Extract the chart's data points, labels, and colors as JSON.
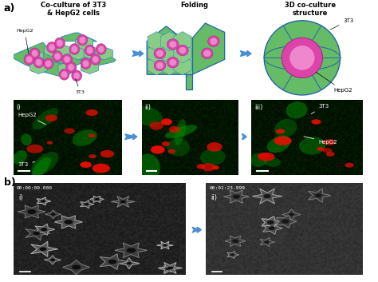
{
  "fig_width": 4.74,
  "fig_height": 3.53,
  "dpi": 100,
  "bg_color": "#ffffff",
  "label_a": "a)",
  "label_b": "b)",
  "title1": "Co-culture of 3T3\n& HepG2 cells",
  "title2": "Folding",
  "title3": "3D co-culture\nstructure",
  "arrow_color": "#4a8fd4",
  "timestamp1": "00:00:00.000",
  "timestamp2": "00:01:23.999",
  "hepg2_color": "#dd44aa",
  "hepg2_inner": "#ee88cc",
  "cell_bg": "#66bb66",
  "cell_bg2": "#88cc88",
  "schematic_border": "#3388bb",
  "schematic_border2": "#2266aa",
  "annot_white": "#ffffff",
  "text_white": "#ffffff",
  "panel_dark": "#050505",
  "green_cell": "#00aa00",
  "red_cell": "#cc2200",
  "fluor_bg_green": "#003300",
  "em_bg1": "#101010",
  "em_bg2": "#1a1a1a"
}
